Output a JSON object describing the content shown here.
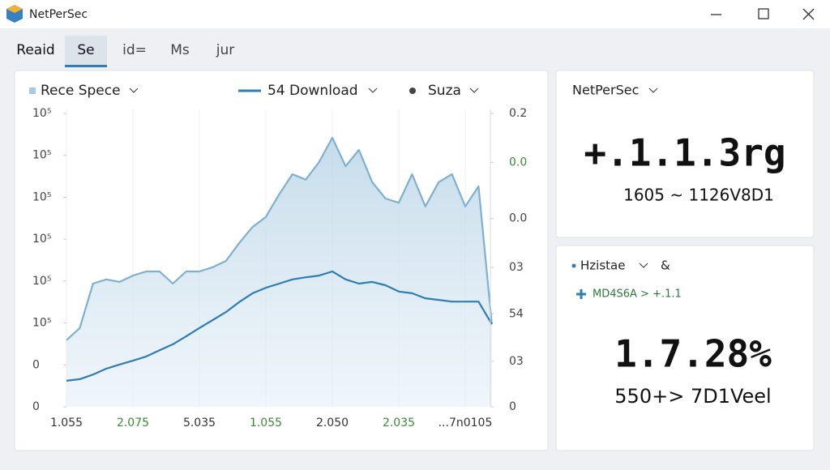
{
  "window": {
    "title": "NetPerSec"
  },
  "tabs": {
    "items": [
      "Reaid",
      "Se",
      "id=",
      "Ms",
      "jur"
    ],
    "active": 1
  },
  "chart_panel": {
    "legend": [
      "Rece Spece",
      "54 Download",
      "Suza"
    ],
    "chart_data": {
      "type": "line",
      "x": [
        0,
        0.2,
        0.4,
        0.6,
        0.8,
        1.0,
        1.2,
        1.4,
        1.6,
        1.8,
        2.0,
        2.2,
        2.4,
        2.6,
        2.8,
        3.0,
        3.2,
        3.4,
        3.6,
        3.8,
        4.0,
        4.2,
        4.4,
        4.6,
        4.8,
        5.0,
        5.2,
        5.4,
        5.6,
        5.8,
        6.0,
        6.2,
        6.4
      ],
      "series": [
        {
          "name": "Rece Spece",
          "color": "#7fb0cf",
          "values": [
            1.59,
            1.88,
            2.94,
            3.04,
            2.98,
            3.13,
            3.23,
            3.23,
            2.94,
            3.23,
            3.23,
            3.33,
            3.48,
            3.91,
            4.29,
            4.53,
            5.07,
            5.55,
            5.42,
            5.84,
            6.42,
            5.74,
            6.13,
            5.36,
            4.97,
            4.87,
            5.55,
            4.78,
            5.36,
            5.55,
            4.78,
            5.26,
            1.97
          ]
        },
        {
          "name": "54 Download",
          "color": "#2f7db3",
          "values": [
            0.62,
            0.66,
            0.77,
            0.91,
            1.01,
            1.1,
            1.2,
            1.35,
            1.49,
            1.68,
            1.88,
            2.07,
            2.26,
            2.5,
            2.71,
            2.84,
            2.94,
            3.04,
            3.09,
            3.13,
            3.23,
            3.04,
            2.94,
            2.98,
            2.9,
            2.75,
            2.71,
            2.59,
            2.55,
            2.51,
            2.51,
            2.51,
            1.97
          ]
        }
      ],
      "xlim": [
        0,
        6.5
      ],
      "xticks": [
        {
          "value": 0,
          "label": "1.055"
        },
        {
          "value": 1,
          "label": "2.075"
        },
        {
          "value": 2,
          "label": "5.035"
        },
        {
          "value": 3,
          "label": "1.055"
        },
        {
          "value": 4,
          "label": "2.050"
        },
        {
          "value": 5,
          "label": "2.035"
        },
        {
          "value": 6,
          "label": "...7n0105"
        }
      ],
      "ylim": [
        0,
        7
      ],
      "yticks": [
        {
          "value": 7,
          "label": "10⁵"
        },
        {
          "value": 6,
          "label": "10⁵"
        },
        {
          "value": 5,
          "label": "10⁵"
        },
        {
          "value": 4,
          "label": "10⁵"
        },
        {
          "value": 3,
          "label": "10⁵"
        },
        {
          "value": 2,
          "label": "10⁵"
        },
        {
          "value": 1,
          "label": "0"
        },
        0
      ],
      "y2lim": [
        0,
        6
      ],
      "y2ticks": [
        {
          "value": 6,
          "label": "0.2"
        },
        {
          "value": 5,
          "label": "0.0"
        },
        {
          "value": 3.85,
          "label": "0.0"
        },
        {
          "value": 2.85,
          "label": "03"
        },
        {
          "value": 1.9,
          "label": "54"
        },
        {
          "value": 0.93,
          "label": "03"
        },
        0
      ],
      "grid": true
    }
  },
  "card1": {
    "title": "NetPerSec",
    "value": "+.1.1.3rg",
    "detail": "1605 ~ 1126V8D1"
  },
  "card2": {
    "title": "Hzistae",
    "extra": "&",
    "status": "MD4S6A > +.1.1",
    "value": "1.7.28%",
    "detail": "550+> 7D1Veel"
  }
}
